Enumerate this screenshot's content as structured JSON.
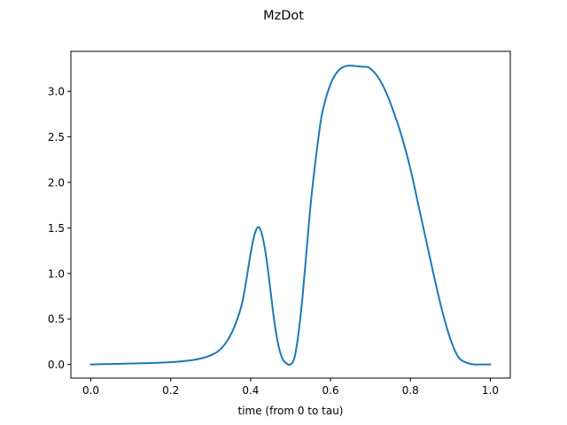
{
  "chart_data": {
    "type": "line",
    "title": "MzDot",
    "xlabel": "time (from 0 to tau)",
    "ylabel": "",
    "xlim": [
      -0.05,
      1.05
    ],
    "ylim": [
      -0.15,
      3.44
    ],
    "xticks": [
      0.0,
      0.2,
      0.4,
      0.6,
      0.8,
      1.0
    ],
    "xtick_labels": [
      "0.0",
      "0.2",
      "0.4",
      "0.6",
      "0.8",
      "1.0"
    ],
    "yticks": [
      0.0,
      0.5,
      1.0,
      1.5,
      2.0,
      2.5,
      3.0
    ],
    "ytick_labels": [
      "0.0",
      "0.5",
      "1.0",
      "1.5",
      "2.0",
      "2.5",
      "3.0"
    ],
    "grid": false,
    "colors": {
      "line": "#1f77b4",
      "axes": "#000000",
      "background": "#ffffff"
    },
    "series": [
      {
        "x": [
          0.0,
          0.05,
          0.1,
          0.15,
          0.2,
          0.25,
          0.28,
          0.3,
          0.32,
          0.34,
          0.36,
          0.38,
          0.4,
          0.41,
          0.42,
          0.43,
          0.44,
          0.45,
          0.46,
          0.47,
          0.48,
          0.49,
          0.5,
          0.51,
          0.52,
          0.53,
          0.54,
          0.55,
          0.56,
          0.57,
          0.58,
          0.6,
          0.62,
          0.64,
          0.66,
          0.68,
          0.69,
          0.7,
          0.72,
          0.74,
          0.76,
          0.78,
          0.8,
          0.82,
          0.84,
          0.86,
          0.88,
          0.9,
          0.92,
          0.94,
          0.96,
          0.98,
          0.99,
          1.0
        ],
        "y": [
          0.0,
          0.005,
          0.01,
          0.015,
          0.025,
          0.045,
          0.07,
          0.1,
          0.15,
          0.25,
          0.42,
          0.7,
          1.22,
          1.43,
          1.51,
          1.4,
          1.15,
          0.8,
          0.45,
          0.2,
          0.06,
          0.01,
          0.0,
          0.08,
          0.35,
          0.75,
          1.25,
          1.75,
          2.15,
          2.5,
          2.78,
          3.08,
          3.23,
          3.28,
          3.28,
          3.27,
          3.27,
          3.25,
          3.15,
          2.98,
          2.75,
          2.48,
          2.15,
          1.75,
          1.35,
          0.95,
          0.58,
          0.28,
          0.08,
          0.02,
          0.0,
          0.0,
          0.0,
          0.0
        ]
      }
    ]
  }
}
